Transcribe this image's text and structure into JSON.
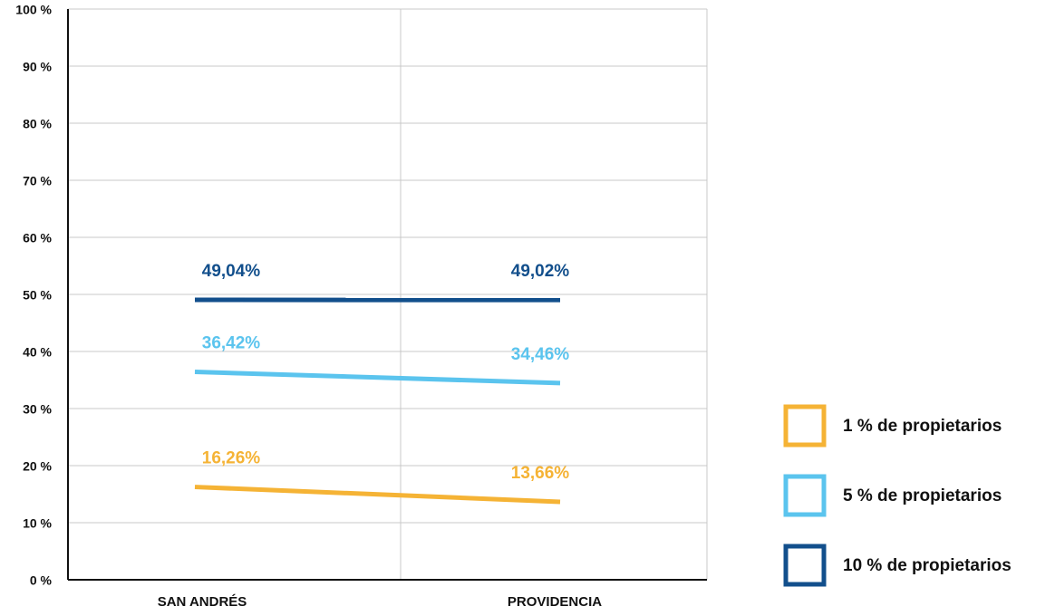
{
  "chart_data": {
    "type": "line",
    "categories": [
      "SAN ANDRÉS",
      "PROVIDENCIA"
    ],
    "series": [
      {
        "name": "1 % de propietarios",
        "color": "#f5b335",
        "values": [
          16.26,
          13.66
        ],
        "value_labels": [
          "16,26%",
          "13,66%"
        ]
      },
      {
        "name": "5 % de propietarios",
        "color": "#5bc4ee",
        "values": [
          36.42,
          34.46
        ],
        "value_labels": [
          "36,42%",
          "34,46%"
        ]
      },
      {
        "name": "10 % de propietarios",
        "color": "#124f8c",
        "values": [
          49.04,
          49.02
        ],
        "value_labels": [
          "49,04%",
          "49,02%"
        ]
      }
    ],
    "ylim": [
      0,
      100
    ],
    "yticks": [
      {
        "value": 0,
        "label": "0 %"
      },
      {
        "value": 10,
        "label": "10 %"
      },
      {
        "value": 20,
        "label": "20 %"
      },
      {
        "value": 30,
        "label": "30 %"
      },
      {
        "value": 40,
        "label": "40 %"
      },
      {
        "value": 50,
        "label": "50 %"
      },
      {
        "value": 60,
        "label": "60 %"
      },
      {
        "value": 70,
        "label": "70 %"
      },
      {
        "value": 80,
        "label": "80 %"
      },
      {
        "value": 90,
        "label": "90 %"
      },
      {
        "value": 100,
        "label": "100 %"
      }
    ],
    "grid": true,
    "legend": "right"
  }
}
